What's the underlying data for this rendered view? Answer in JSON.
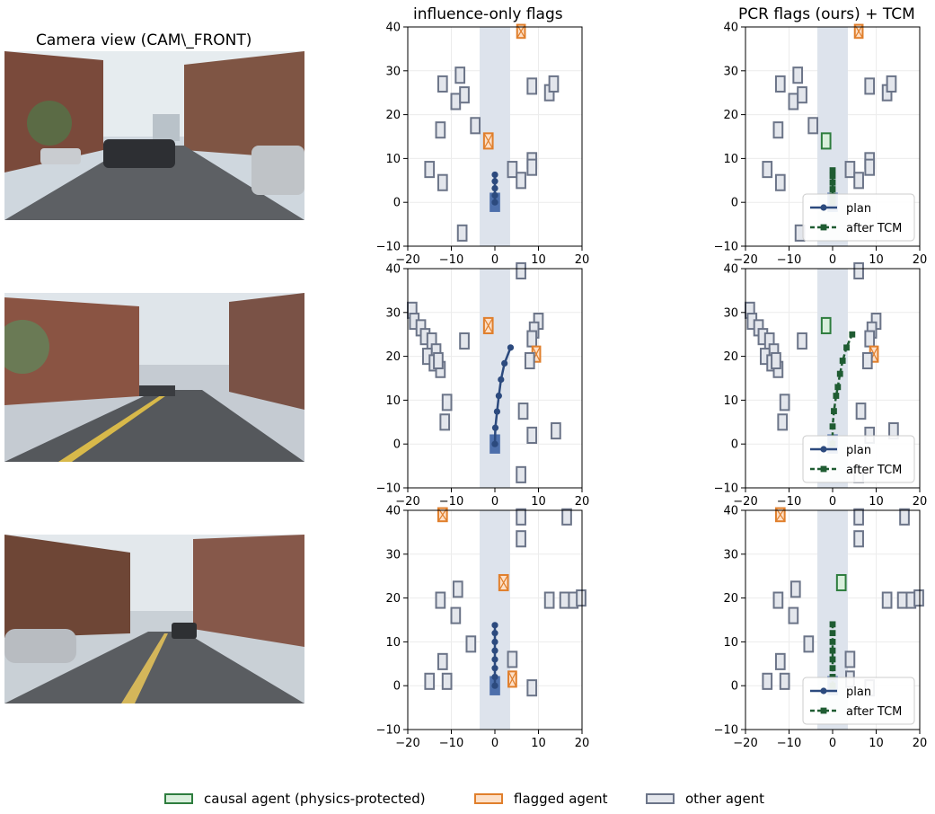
{
  "camera_title": "Camera view (CAM\\_FRONT)",
  "legend": [
    {
      "label": "causal agent (physics-protected)",
      "fill": "#d9efdc",
      "stroke": "#2e7d3e"
    },
    {
      "label": "flagged agent",
      "fill": "#fde0c8",
      "stroke": "#e07f2c"
    },
    {
      "label": "other agent",
      "fill": "#e3e6ec",
      "stroke": "#6b7488"
    }
  ],
  "colors": {
    "plan": "#2c4a7e",
    "tcm": "#1f5c32",
    "lane": "#dde3ec",
    "ego": "#3d62a4",
    "grid": "#ececec"
  },
  "chart_data": {
    "type": "scatter",
    "columns": [
      "influence-only flags",
      "PCR flags (ours) + TCM"
    ],
    "xlim": [
      -20,
      20
    ],
    "ylim": [
      -10,
      40
    ],
    "xticks": [
      -20,
      -10,
      0,
      10,
      20
    ],
    "yticks": [
      -10,
      0,
      10,
      20,
      30,
      40
    ],
    "lane_x": [
      -3.5,
      3.5
    ],
    "series_legend": [
      {
        "name": "plan",
        "style": "solid-circle"
      },
      {
        "name": "after TCM",
        "style": "dashed-square"
      }
    ],
    "legend_position": "lower-right",
    "scenes": [
      {
        "camera": "scene-1",
        "plan": [
          [
            0,
            0
          ],
          [
            0,
            1.6
          ],
          [
            0,
            3.2
          ],
          [
            0,
            4.8
          ],
          [
            0,
            6.3
          ]
        ],
        "tcm": [
          [
            0,
            0
          ],
          [
            0,
            1.5
          ],
          [
            0,
            3
          ],
          [
            0,
            4.5
          ],
          [
            0,
            6
          ],
          [
            0,
            7.3
          ]
        ],
        "agents": [
          {
            "x": 6,
            "y": 39,
            "w": 1.8,
            "h": 3,
            "influence": "flagged",
            "pcr": "flagged"
          },
          {
            "x": -12,
            "y": 27,
            "w": 2,
            "h": 3.5,
            "influence": "other",
            "pcr": "other"
          },
          {
            "x": -8,
            "y": 29,
            "w": 2,
            "h": 3.5,
            "influence": "other",
            "pcr": "other"
          },
          {
            "x": -9,
            "y": 23,
            "w": 2,
            "h": 3.5,
            "influence": "other",
            "pcr": "other"
          },
          {
            "x": -7,
            "y": 24.5,
            "w": 2,
            "h": 3.5,
            "influence": "other",
            "pcr": "other"
          },
          {
            "x": 8.5,
            "y": 26.5,
            "w": 2,
            "h": 3.5,
            "influence": "other",
            "pcr": "other"
          },
          {
            "x": 12.5,
            "y": 25,
            "w": 2,
            "h": 3.5,
            "influence": "other",
            "pcr": "other"
          },
          {
            "x": 13.5,
            "y": 27,
            "w": 2,
            "h": 3.5,
            "influence": "other",
            "pcr": "other"
          },
          {
            "x": -4.5,
            "y": 17.5,
            "w": 2,
            "h": 3.5,
            "influence": "other",
            "pcr": "other"
          },
          {
            "x": -12.5,
            "y": 16.5,
            "w": 2,
            "h": 3.5,
            "influence": "other",
            "pcr": "other"
          },
          {
            "x": -1.5,
            "y": 14,
            "w": 2,
            "h": 3.5,
            "influence": "flagged",
            "pcr": "causal"
          },
          {
            "x": 8.5,
            "y": 9.5,
            "w": 2,
            "h": 3.5,
            "influence": "other",
            "pcr": "other"
          },
          {
            "x": 8.5,
            "y": 8,
            "w": 2,
            "h": 3.5,
            "influence": "other",
            "pcr": "other"
          },
          {
            "x": 4,
            "y": 7.5,
            "w": 2,
            "h": 3.5,
            "influence": "other",
            "pcr": "other"
          },
          {
            "x": -15,
            "y": 7.5,
            "w": 2,
            "h": 3.5,
            "influence": "other",
            "pcr": "other"
          },
          {
            "x": -12,
            "y": 4.5,
            "w": 2,
            "h": 3.5,
            "influence": "other",
            "pcr": "other"
          },
          {
            "x": 6,
            "y": 5,
            "w": 2,
            "h": 3.5,
            "influence": "other",
            "pcr": "other"
          },
          {
            "x": -7.5,
            "y": -7,
            "w": 2,
            "h": 3.5,
            "influence": "other",
            "pcr": "other"
          }
        ]
      },
      {
        "camera": "scene-2",
        "plan": [
          [
            0,
            0
          ],
          [
            0.1,
            3.7
          ],
          [
            0.5,
            7.4
          ],
          [
            0.9,
            11
          ],
          [
            1.4,
            14.7
          ],
          [
            2.2,
            18.4
          ],
          [
            3.6,
            22
          ]
        ],
        "tcm": [
          [
            0,
            0
          ],
          [
            0,
            4
          ],
          [
            0.3,
            7.5
          ],
          [
            0.8,
            11
          ],
          [
            1.2,
            13
          ],
          [
            1.7,
            16
          ],
          [
            2.3,
            19
          ],
          [
            3.2,
            22
          ],
          [
            4.5,
            25
          ]
        ],
        "agents": [
          {
            "x": 6,
            "y": 39.5,
            "w": 2,
            "h": 3.5,
            "influence": "other",
            "pcr": "other"
          },
          {
            "x": -19,
            "y": 30.5,
            "w": 2,
            "h": 3.5,
            "influence": "other",
            "pcr": "other"
          },
          {
            "x": -18.5,
            "y": 28,
            "w": 2,
            "h": 3.5,
            "influence": "other",
            "pcr": "other"
          },
          {
            "x": -17,
            "y": 26.5,
            "w": 2,
            "h": 3.5,
            "influence": "other",
            "pcr": "other"
          },
          {
            "x": -16,
            "y": 24.5,
            "w": 2,
            "h": 3.5,
            "influence": "other",
            "pcr": "other"
          },
          {
            "x": -14.5,
            "y": 23.5,
            "w": 2,
            "h": 3.5,
            "influence": "other",
            "pcr": "other"
          },
          {
            "x": -13.5,
            "y": 21,
            "w": 2,
            "h": 3.5,
            "influence": "other",
            "pcr": "other"
          },
          {
            "x": -15.5,
            "y": 20,
            "w": 2,
            "h": 3.5,
            "influence": "other",
            "pcr": "other"
          },
          {
            "x": -14,
            "y": 18.5,
            "w": 2,
            "h": 3.5,
            "influence": "other",
            "pcr": "other"
          },
          {
            "x": -12.5,
            "y": 17,
            "w": 2,
            "h": 3.5,
            "influence": "other",
            "pcr": "other"
          },
          {
            "x": -13,
            "y": 19,
            "w": 2,
            "h": 3.5,
            "influence": "other",
            "pcr": "other"
          },
          {
            "x": -7,
            "y": 23.5,
            "w": 2,
            "h": 3.5,
            "influence": "other",
            "pcr": "other"
          },
          {
            "x": -1.5,
            "y": 27,
            "w": 2,
            "h": 3.5,
            "influence": "flagged",
            "pcr": "causal"
          },
          {
            "x": 10,
            "y": 28,
            "w": 2,
            "h": 3.5,
            "influence": "other",
            "pcr": "other"
          },
          {
            "x": 9,
            "y": 26,
            "w": 2,
            "h": 3.5,
            "influence": "other",
            "pcr": "other"
          },
          {
            "x": 8.5,
            "y": 24,
            "w": 2,
            "h": 3.5,
            "influence": "other",
            "pcr": "other"
          },
          {
            "x": 9.5,
            "y": 20.5,
            "w": 1.8,
            "h": 3.5,
            "influence": "flagged",
            "pcr": "flagged"
          },
          {
            "x": 8,
            "y": 19,
            "w": 2,
            "h": 3.5,
            "influence": "other",
            "pcr": "other"
          },
          {
            "x": -11,
            "y": 9.5,
            "w": 2,
            "h": 3.5,
            "influence": "other",
            "pcr": "other"
          },
          {
            "x": -11.5,
            "y": 5,
            "w": 2,
            "h": 3.5,
            "influence": "other",
            "pcr": "other"
          },
          {
            "x": 6.5,
            "y": 7.5,
            "w": 2,
            "h": 3.5,
            "influence": "other",
            "pcr": "other"
          },
          {
            "x": 8.5,
            "y": 2,
            "w": 2,
            "h": 3.5,
            "influence": "other",
            "pcr": "other"
          },
          {
            "x": 14,
            "y": 3,
            "w": 2,
            "h": 3.5,
            "influence": "other",
            "pcr": "other"
          },
          {
            "x": 6,
            "y": -7,
            "w": 2,
            "h": 3.5,
            "influence": "other",
            "pcr": "other"
          }
        ]
      },
      {
        "camera": "scene-3",
        "plan": [
          [
            0,
            0
          ],
          [
            0,
            2
          ],
          [
            0,
            4
          ],
          [
            0,
            6
          ],
          [
            0,
            8
          ],
          [
            0,
            10
          ],
          [
            0,
            12
          ],
          [
            0,
            13.8
          ]
        ],
        "tcm": [
          [
            0,
            0
          ],
          [
            0,
            2
          ],
          [
            0,
            4
          ],
          [
            0,
            6
          ],
          [
            0,
            8
          ],
          [
            0,
            10
          ],
          [
            0,
            12
          ],
          [
            0,
            14
          ]
        ],
        "agents": [
          {
            "x": -12,
            "y": 39,
            "w": 2,
            "h": 3,
            "influence": "flagged",
            "pcr": "flagged"
          },
          {
            "x": 6,
            "y": 38.5,
            "w": 2,
            "h": 3.5,
            "influence": "other",
            "pcr": "other"
          },
          {
            "x": 16.5,
            "y": 38.5,
            "w": 2,
            "h": 3.5,
            "influence": "other",
            "pcr": "other"
          },
          {
            "x": 6,
            "y": 33.5,
            "w": 2,
            "h": 3.5,
            "influence": "other",
            "pcr": "other"
          },
          {
            "x": 2,
            "y": 23.5,
            "w": 2,
            "h": 3.5,
            "influence": "flagged",
            "pcr": "causal"
          },
          {
            "x": -8.5,
            "y": 22,
            "w": 2,
            "h": 3.5,
            "influence": "other",
            "pcr": "other"
          },
          {
            "x": -12.5,
            "y": 19.5,
            "w": 2,
            "h": 3.5,
            "influence": "other",
            "pcr": "other"
          },
          {
            "x": -9,
            "y": 16,
            "w": 2,
            "h": 3.5,
            "influence": "other",
            "pcr": "other"
          },
          {
            "x": 12.5,
            "y": 19.5,
            "w": 2,
            "h": 3.5,
            "influence": "other",
            "pcr": "other"
          },
          {
            "x": 16,
            "y": 19.5,
            "w": 2,
            "h": 3.5,
            "influence": "other",
            "pcr": "other"
          },
          {
            "x": 18,
            "y": 19.5,
            "w": 2,
            "h": 3.5,
            "influence": "other",
            "pcr": "other"
          },
          {
            "x": 19.8,
            "y": 20,
            "w": 2,
            "h": 3.5,
            "influence": "other",
            "pcr": "other"
          },
          {
            "x": -5.5,
            "y": 9.5,
            "w": 2,
            "h": 3.5,
            "influence": "other",
            "pcr": "other"
          },
          {
            "x": -12,
            "y": 5.5,
            "w": 2,
            "h": 3.5,
            "influence": "other",
            "pcr": "other"
          },
          {
            "x": -15,
            "y": 1,
            "w": 2,
            "h": 3.5,
            "influence": "other",
            "pcr": "other"
          },
          {
            "x": -11,
            "y": 1,
            "w": 2,
            "h": 3.5,
            "influence": "other",
            "pcr": "other"
          },
          {
            "x": 4,
            "y": 1.5,
            "w": 1.8,
            "h": 3.5,
            "influence": "flagged",
            "pcr": "other"
          },
          {
            "x": 8.5,
            "y": -0.5,
            "w": 2,
            "h": 3.5,
            "influence": "other",
            "pcr": "other"
          },
          {
            "x": 4,
            "y": 6,
            "w": 2,
            "h": 3.5,
            "influence": "other",
            "pcr": "other"
          }
        ]
      }
    ]
  }
}
